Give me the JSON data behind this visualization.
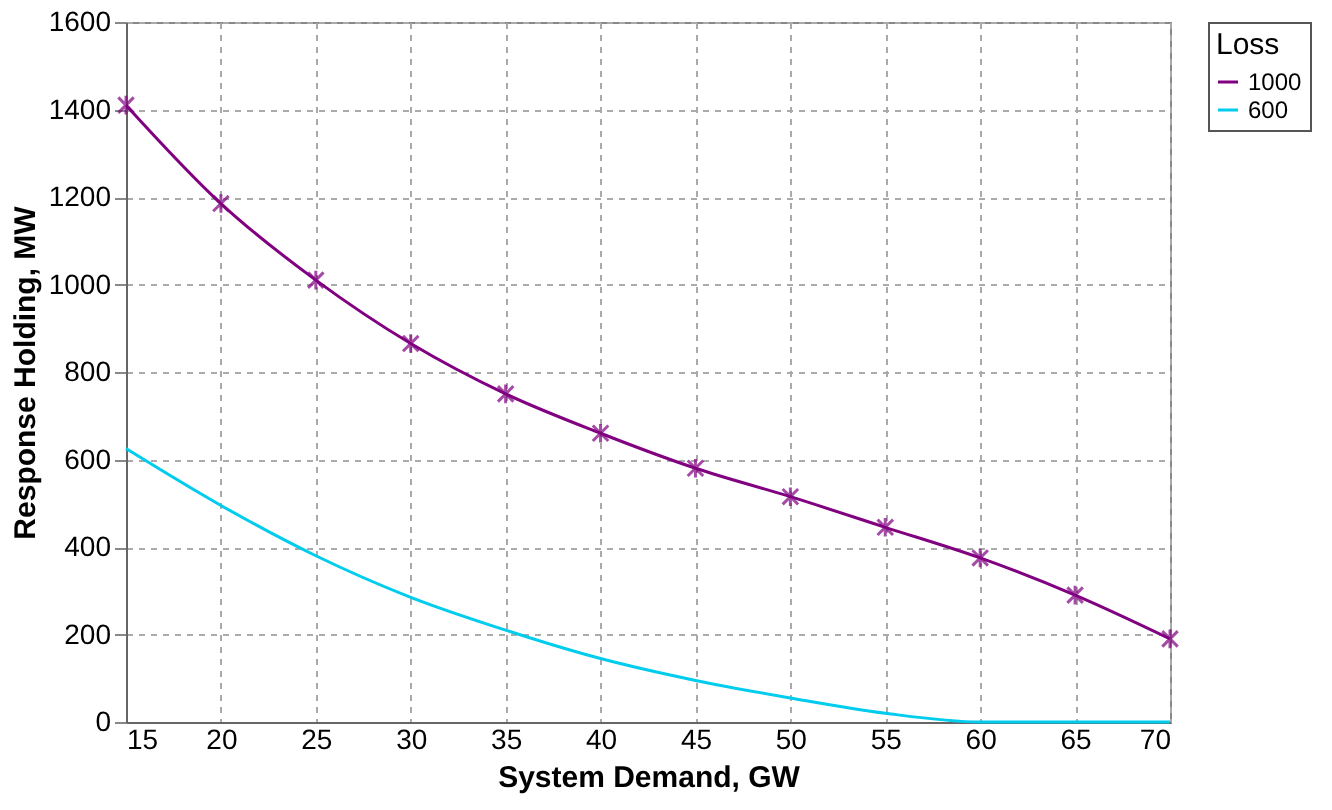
{
  "chart_data": {
    "type": "line",
    "xlabel": "System Demand, GW",
    "ylabel": "Response Holding, MW",
    "legend_title": "Loss",
    "x": [
      15,
      20,
      25,
      30,
      35,
      40,
      45,
      50,
      55,
      60,
      65,
      70
    ],
    "series": [
      {
        "name": "1000",
        "color": "#800080",
        "marker": "cross",
        "values": [
          1410,
          1185,
          1010,
          865,
          750,
          660,
          580,
          515,
          445,
          375,
          290,
          190
        ]
      },
      {
        "name": "600",
        "color": "#00ccee",
        "marker": "none",
        "values": [
          625,
          495,
          380,
          285,
          210,
          145,
          95,
          55,
          20,
          0,
          0,
          0
        ]
      }
    ],
    "xlim": [
      15,
      70
    ],
    "xticks": [
      15,
      20,
      25,
      30,
      35,
      40,
      45,
      50,
      55,
      60,
      65,
      70
    ],
    "ylim": [
      0,
      1600
    ],
    "yticks": [
      0,
      200,
      400,
      600,
      800,
      1000,
      1200,
      1400,
      1600
    ],
    "grid": true,
    "legend": "right",
    "line_style": "solid"
  }
}
